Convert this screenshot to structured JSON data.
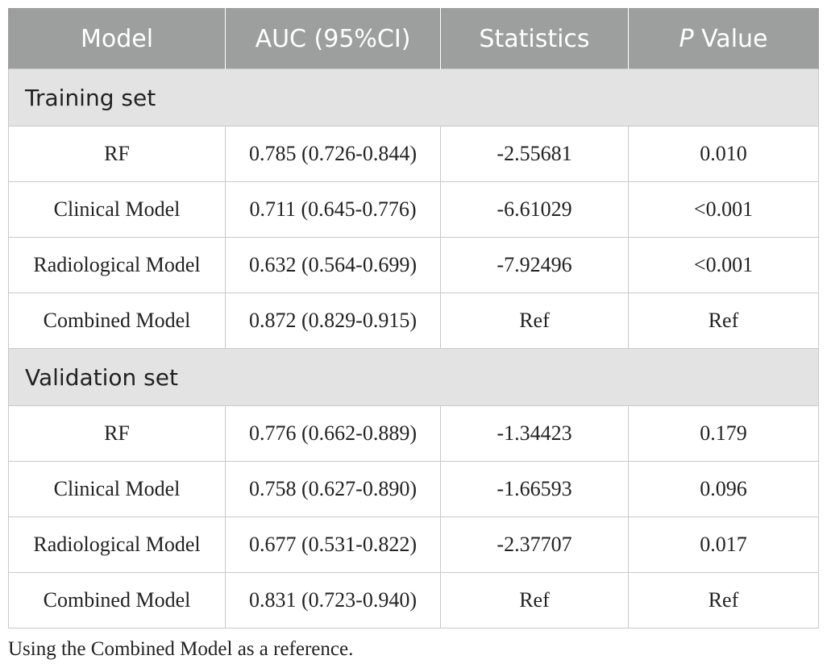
{
  "table": {
    "headers": {
      "model": "Model",
      "auc": "AUC (95%CI)",
      "statistics": "Statistics",
      "p_italic": "P",
      "p_rest": " Value"
    },
    "sections": [
      {
        "title": "Training set",
        "rows": [
          {
            "model": "RF",
            "auc": "0.785 (0.726-0.844)",
            "statistics": "-2.55681",
            "p": "0.010"
          },
          {
            "model": "Clinical Model",
            "auc": "0.711 (0.645-0.776)",
            "statistics": "-6.61029",
            "p": "<0.001"
          },
          {
            "model": "Radiological Model",
            "auc": "0.632 (0.564-0.699)",
            "statistics": "-7.92496",
            "p": "<0.001"
          },
          {
            "model": "Combined Model",
            "auc": "0.872 (0.829-0.915)",
            "statistics": "Ref",
            "p": "Ref"
          }
        ]
      },
      {
        "title": "Validation set",
        "rows": [
          {
            "model": "RF",
            "auc": "0.776 (0.662-0.889)",
            "statistics": "-1.34423",
            "p": "0.179"
          },
          {
            "model": "Clinical Model",
            "auc": "0.758 (0.627-0.890)",
            "statistics": "-1.66593",
            "p": "0.096"
          },
          {
            "model": "Radiological Model",
            "auc": "0.677 (0.531-0.822)",
            "statistics": "-2.37707",
            "p": "0.017"
          },
          {
            "model": "Combined Model",
            "auc": "0.831 (0.723-0.940)",
            "statistics": "Ref",
            "p": "Ref"
          }
        ]
      }
    ]
  },
  "footnote": "Using the Combined Model as a reference."
}
